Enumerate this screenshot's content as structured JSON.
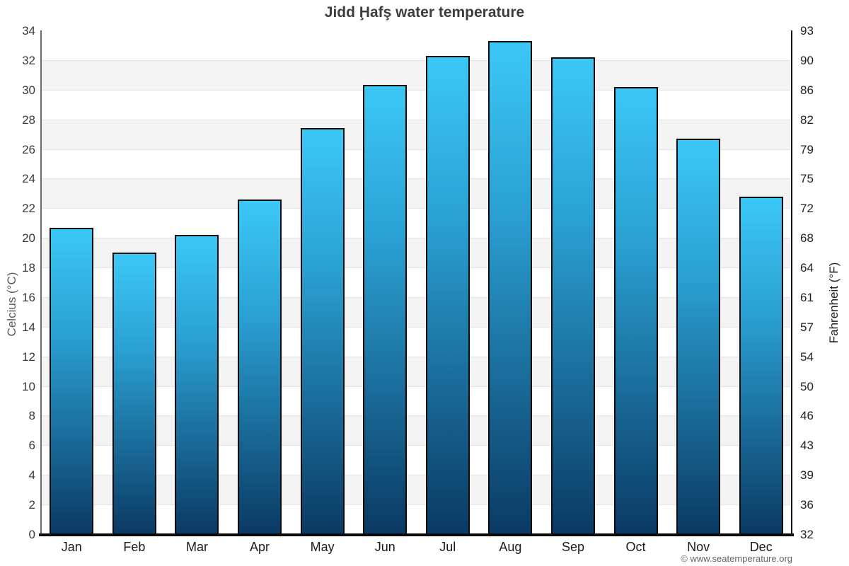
{
  "page": {
    "title": "Jidd Ḩafş water temperature",
    "footer_credit": "© www.seatemperature.org"
  },
  "chart_data": {
    "type": "bar",
    "title": "Jidd Ḩafş water temperature",
    "categories": [
      "Jan",
      "Feb",
      "Mar",
      "Apr",
      "May",
      "Jun",
      "Jul",
      "Aug",
      "Sep",
      "Oct",
      "Nov",
      "Dec"
    ],
    "values": [
      20.7,
      19.0,
      20.2,
      22.6,
      27.4,
      30.3,
      32.3,
      33.3,
      32.2,
      30.2,
      26.7,
      22.8
    ],
    "unit": "°C",
    "ylabel_left": "Celcius (°C)",
    "ylabel_right": "Fahrenheit (°F)",
    "ylim": [
      0,
      34
    ],
    "ytick_step": 2,
    "yticks_celsius": [
      0,
      2,
      4,
      6,
      8,
      10,
      12,
      14,
      16,
      18,
      20,
      22,
      24,
      26,
      28,
      30,
      32,
      34
    ],
    "yticks_fahrenheit": [
      "32",
      "36",
      "39",
      "43",
      "46",
      "50",
      "54",
      "57",
      "61",
      "64",
      "68",
      "72",
      "75",
      "79",
      "82",
      "86",
      "90",
      "93"
    ],
    "legend_position": "none",
    "grid": "alternating 2°C horizontal bands",
    "colors": {
      "bar_top": "#3bc8f6",
      "bar_bottom": "#0a3a63",
      "bar_border": "#0b0b0b",
      "band_gray": "#f3f3f3",
      "band_white": "#ffffff",
      "axis": "#0a0a0a",
      "title_text": "#3d3d3d"
    }
  }
}
